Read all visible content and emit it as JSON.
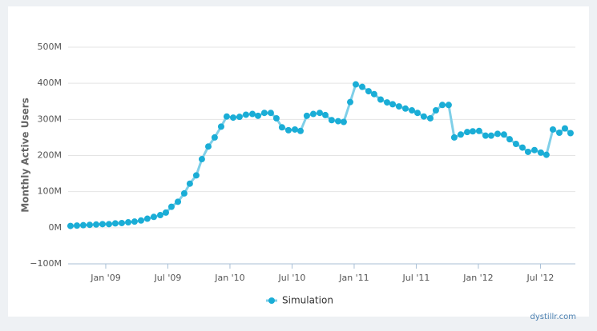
{
  "chart_data": {
    "type": "line",
    "y_label": "Monthly Active Users",
    "credit": "dystillr.com",
    "x": [
      2008.716,
      2008.768,
      2008.819,
      2008.871,
      2008.923,
      2008.974,
      2009.026,
      2009.077,
      2009.129,
      2009.181,
      2009.232,
      2009.284,
      2009.335,
      2009.387,
      2009.439,
      2009.484,
      2009.529,
      2009.581,
      2009.632,
      2009.677,
      2009.729,
      2009.774,
      2009.826,
      2009.877,
      2009.929,
      2009.974,
      2010.026,
      2010.077,
      2010.129,
      2010.181,
      2010.226,
      2010.277,
      2010.329,
      2010.374,
      2010.419,
      2010.471,
      2010.523,
      2010.568,
      2010.619,
      2010.671,
      2010.723,
      2010.768,
      2010.819,
      2010.871,
      2010.916,
      2010.968,
      2011.013,
      2011.065,
      2011.116,
      2011.161,
      2011.213,
      2011.265,
      2011.31,
      2011.361,
      2011.413,
      2011.465,
      2011.51,
      2011.561,
      2011.613,
      2011.658,
      2011.71,
      2011.761,
      2011.806,
      2011.858,
      2011.91,
      2011.955,
      2012.006,
      2012.058,
      2012.103,
      2012.155,
      2012.206,
      2012.252,
      2012.303,
      2012.355,
      2012.4,
      2012.452,
      2012.503,
      2012.548,
      2012.6,
      2012.652,
      2012.697,
      2012.742
    ],
    "series": [
      {
        "name": "Simulation",
        "color": "#1aadd6",
        "values": [
          5,
          6,
          7,
          8,
          9,
          10,
          10,
          12,
          13,
          15,
          17,
          20,
          25,
          30,
          35,
          42,
          58,
          72,
          95,
          122,
          145,
          190,
          225,
          250,
          280,
          308,
          305,
          307,
          313,
          315,
          310,
          318,
          318,
          303,
          278,
          270,
          272,
          268,
          310,
          315,
          318,
          312,
          298,
          295,
          293,
          348,
          397,
          390,
          378,
          370,
          355,
          347,
          342,
          336,
          330,
          325,
          318,
          308,
          303,
          325,
          340,
          340,
          250,
          258,
          265,
          267,
          268,
          255,
          255,
          260,
          258,
          245,
          232,
          222,
          210,
          215,
          208,
          202,
          272,
          263,
          275,
          262
        ]
      }
    ],
    "xlim": [
      2008.697,
      2012.781
    ],
    "xticks": [
      {
        "value": 2009.0,
        "label": "Jan '09"
      },
      {
        "value": 2009.5,
        "label": "Jul '09"
      },
      {
        "value": 2010.0,
        "label": "Jan '10"
      },
      {
        "value": 2010.5,
        "label": "Jul '10"
      },
      {
        "value": 2011.0,
        "label": "Jan '11"
      },
      {
        "value": 2011.5,
        "label": "Jul '11"
      },
      {
        "value": 2012.0,
        "label": "Jan '12"
      },
      {
        "value": 2012.5,
        "label": "Jul '12"
      }
    ],
    "ylim": [
      -100,
      500
    ],
    "yticks": [
      {
        "value": -100,
        "label": "−100M"
      },
      {
        "value": 0,
        "label": "0M"
      },
      {
        "value": 100,
        "label": "100M"
      },
      {
        "value": 200,
        "label": "200M"
      },
      {
        "value": 300,
        "label": "300M"
      },
      {
        "value": 400,
        "label": "400M"
      },
      {
        "value": 500,
        "label": "500M"
      }
    ],
    "grid": true,
    "legend": "bottom"
  }
}
